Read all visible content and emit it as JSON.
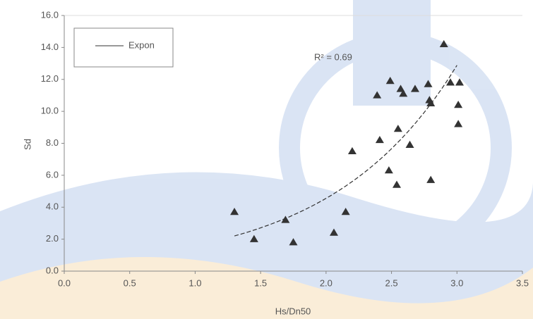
{
  "chart_data": {
    "type": "scatter",
    "x_label": "Hs/Dn50",
    "y_label": "Sd",
    "series": [
      {
        "name": "Sd",
        "color": "#333333",
        "x": [
          1.3,
          1.45,
          1.69,
          1.75,
          2.06,
          2.15,
          2.2,
          2.39,
          2.41,
          2.48,
          2.49,
          2.54,
          2.55,
          2.57,
          2.59,
          2.64,
          2.68,
          2.78,
          2.79,
          2.8,
          2.8,
          2.9,
          2.95,
          3.02,
          3.01,
          3.01
        ],
        "values": [
          3.7,
          2.0,
          3.2,
          1.8,
          2.4,
          3.7,
          7.5,
          11.0,
          8.2,
          6.3,
          11.9,
          5.4,
          8.9,
          11.4,
          11.1,
          7.9,
          11.4,
          11.7,
          10.7,
          10.5,
          5.7,
          14.2,
          11.8,
          11.8,
          10.4,
          9.2
        ]
      }
    ],
    "trendline": {
      "name": "Expon",
      "a": 0.569,
      "b": 1.04,
      "xrange": [
        1.3,
        3.0
      ],
      "annotation": "R² = 0.69"
    },
    "xlim": [
      0,
      3.5
    ],
    "xticks": [
      {
        "value": 0,
        "label": "0.0"
      },
      {
        "value": 0.5,
        "label": "0.5"
      },
      {
        "value": 1,
        "label": "1.0"
      },
      {
        "value": 1.5,
        "label": "1.5"
      },
      {
        "value": 2,
        "label": "2.0"
      },
      {
        "value": 2.5,
        "label": "2.5"
      },
      {
        "value": 3,
        "label": "3.0"
      },
      {
        "value": 3.5,
        "label": "3.5"
      }
    ],
    "ylim": [
      0,
      16
    ],
    "yticks": [
      {
        "value": 0,
        "label": "0.0"
      },
      {
        "value": 2,
        "label": "2.0"
      },
      {
        "value": 4,
        "label": "4.0"
      },
      {
        "value": 6,
        "label": "6.0"
      },
      {
        "value": 8,
        "label": "8.0"
      },
      {
        "value": 10,
        "label": "10.0"
      },
      {
        "value": 12,
        "label": "12.0"
      },
      {
        "value": 14,
        "label": "14.0"
      },
      {
        "value": 16,
        "label": "16.0"
      }
    ]
  }
}
